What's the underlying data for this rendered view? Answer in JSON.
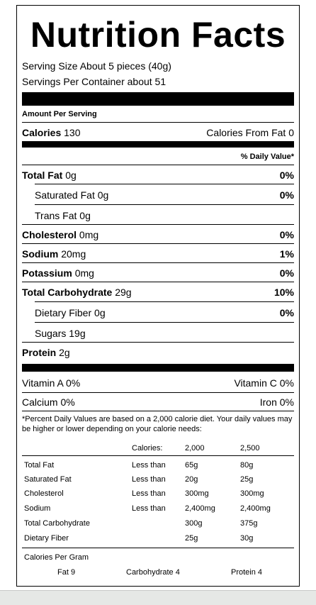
{
  "title": "Nutrition Facts",
  "serving_size": "Serving Size  About 5 pieces (40g)",
  "servings_per_container": "Servings Per Container about 51",
  "amount_per_serving": "Amount Per Serving",
  "calories": {
    "label": "Calories",
    "value": "130",
    "from_fat": "Calories From Fat 0"
  },
  "daily_value_header": "% Daily Value*",
  "nutrients": [
    {
      "label": "Total Fat",
      "amount": "0g",
      "dv": "0%"
    },
    {
      "label": "Saturated Fat",
      "amount": "0g",
      "dv": "0%"
    },
    {
      "label": "Trans Fat",
      "amount": "0g",
      "dv": ""
    },
    {
      "label": "Cholesterol",
      "amount": "0mg",
      "dv": "0%"
    },
    {
      "label": "Sodium",
      "amount": "20mg",
      "dv": "1%"
    },
    {
      "label": "Potassium",
      "amount": "0mg",
      "dv": "0%"
    },
    {
      "label": "Total Carbohydrate",
      "amount": "29g",
      "dv": "10%"
    },
    {
      "label": "Dietary Fiber",
      "amount": "0g",
      "dv": "0%"
    },
    {
      "label": "Sugars",
      "amount": "19g",
      "dv": ""
    },
    {
      "label": "Protein",
      "amount": "2g",
      "dv": ""
    }
  ],
  "vitamins": {
    "vitamin_a": "Vitamin A 0%",
    "vitamin_c": "Vitamin C 0%",
    "calcium": "Calcium 0%",
    "iron": "Iron 0%"
  },
  "footnote": "*Percent Daily Values are based on a 2,000 calorie diet. Your daily values may be higher or lower depending on your calorie needs:",
  "reference_table": {
    "header": [
      "",
      "Calories:",
      "2,000",
      "2,500"
    ],
    "rows": [
      [
        "Total Fat",
        "Less than",
        "65g",
        "80g"
      ],
      [
        "Saturated Fat",
        "Less than",
        "20g",
        "25g"
      ],
      [
        "Cholesterol",
        "Less than",
        "300mg",
        "300mg"
      ],
      [
        "Sodium",
        "Less than",
        "2,400mg",
        "2,400mg"
      ],
      [
        "Total Carbohydrate",
        "",
        "300g",
        "375g"
      ],
      [
        "Dietary Fiber",
        "",
        "25g",
        "30g"
      ]
    ]
  },
  "calories_per_gram": {
    "label": "Calories Per Gram",
    "fat": "Fat 9",
    "carbohydrate": "Carbohydrate 4",
    "protein": "Protein 4"
  }
}
